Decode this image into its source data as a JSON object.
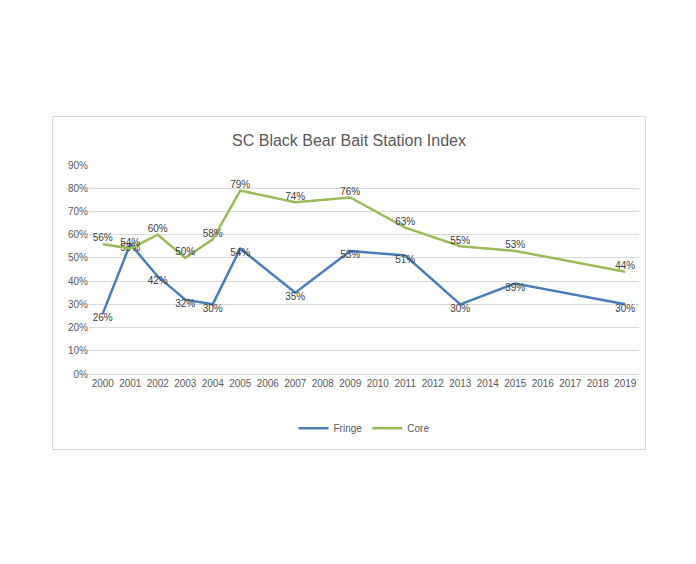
{
  "chart_data": {
    "type": "line",
    "title": "SC Black Bear Bait Station Index",
    "x": [
      2000,
      2001,
      2002,
      2003,
      2004,
      2005,
      2007,
      2009,
      2011,
      2013,
      2015,
      2019
    ],
    "series": [
      {
        "name": "Fringe",
        "color": "#4a7ebb",
        "values": [
          26,
          56,
          42,
          32,
          30,
          54,
          35,
          53,
          51,
          30,
          39,
          30
        ],
        "value_labels": [
          "26%",
          "56%",
          "42%",
          "32%",
          "30%",
          "54%",
          "35%",
          "53%",
          "51%",
          "30%",
          "39%",
          "30%"
        ]
      },
      {
        "name": "Core",
        "color": "#9bbb59",
        "values": [
          56,
          54,
          60,
          50,
          58,
          79,
          74,
          76,
          63,
          55,
          53,
          44
        ],
        "value_labels": [
          "56%",
          "54%",
          "60%",
          "50%",
          "58%",
          "79%",
          "74%",
          "76%",
          "63%",
          "55%",
          "53%",
          "44%"
        ]
      }
    ],
    "xlim": [
      1999.5,
      2019.5
    ],
    "xticks": [
      2000,
      2001,
      2002,
      2003,
      2004,
      2005,
      2006,
      2007,
      2008,
      2009,
      2010,
      2011,
      2012,
      2013,
      2014,
      2015,
      2016,
      2017,
      2018,
      2019
    ],
    "ylim": [
      0,
      90
    ],
    "yticks": [
      {
        "value": 0,
        "label": "0%"
      },
      {
        "value": 10,
        "label": "10%"
      },
      {
        "value": 20,
        "label": "20%"
      },
      {
        "value": 30,
        "label": "30%"
      },
      {
        "value": 40,
        "label": "40%"
      },
      {
        "value": 50,
        "label": "50%"
      },
      {
        "value": 60,
        "label": "60%"
      },
      {
        "value": 70,
        "label": "70%"
      },
      {
        "value": 80,
        "label": "80%"
      },
      {
        "value": 90,
        "label": "90%"
      }
    ],
    "grid": true,
    "legend": "bottom",
    "data_labels": true
  }
}
